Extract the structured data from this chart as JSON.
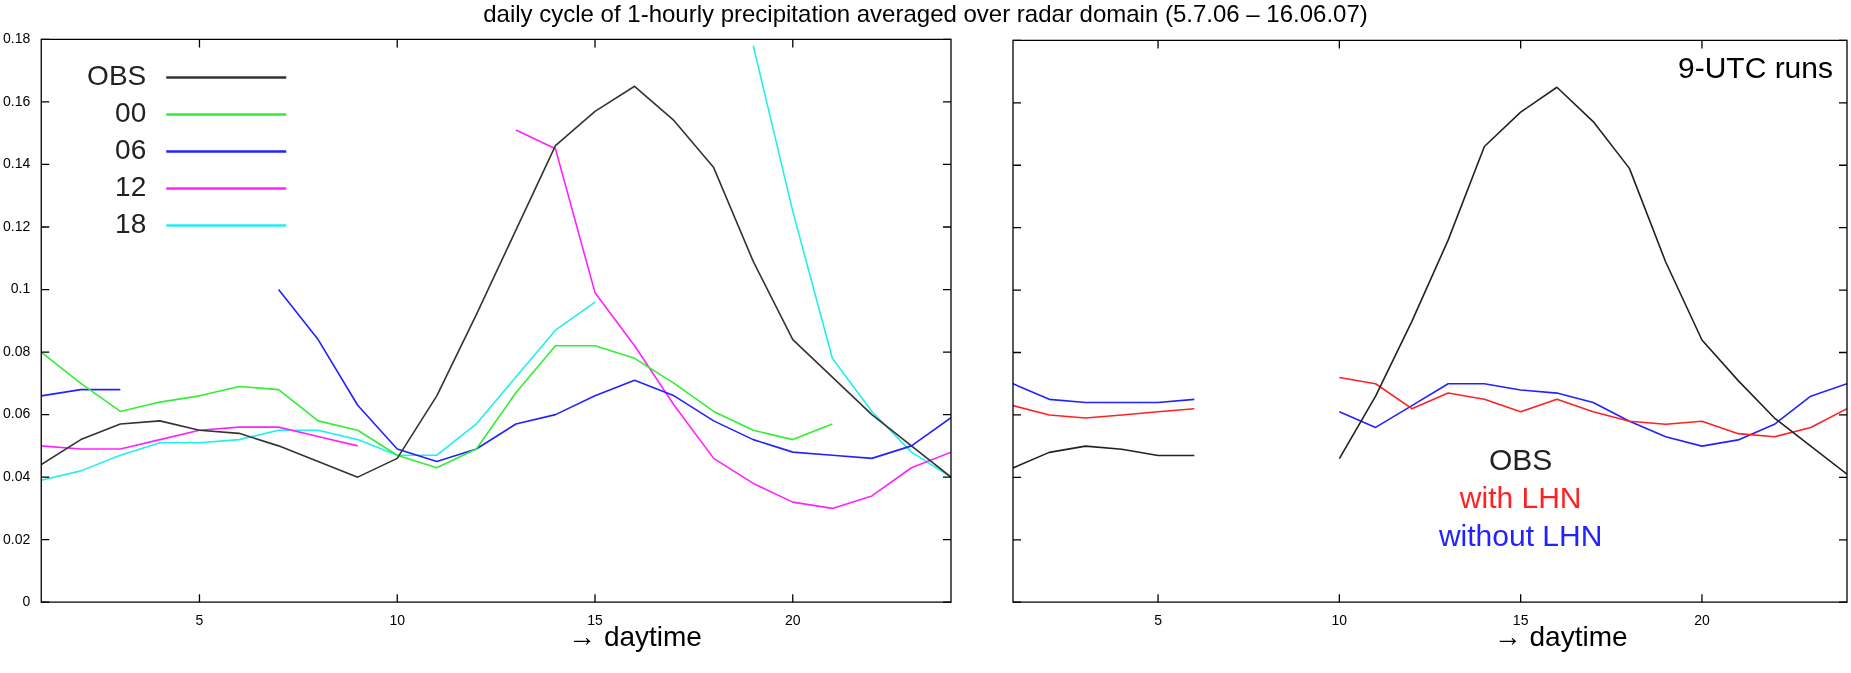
{
  "chart_data": [
    {
      "type": "line",
      "title": "daily cycle of 1-hourly precipitation averaged over radar domain (5.7.06 – 16.06.07)",
      "xlabel": "→ daytime",
      "x": [
        1,
        2,
        3,
        4,
        5,
        6,
        7,
        8,
        9,
        10,
        11,
        12,
        13,
        14,
        15,
        16,
        17,
        18,
        19,
        20,
        21,
        22,
        23,
        24
      ],
      "series": [
        {
          "name": "OBS",
          "color": "#333333",
          "values": [
            0.044,
            0.052,
            0.057,
            0.058,
            0.055,
            0.054,
            0.05,
            0.045,
            0.04,
            0.046,
            0.066,
            0.092,
            0.119,
            0.146,
            0.157,
            0.165,
            0.154,
            0.139,
            0.109,
            0.084,
            0.072,
            0.06,
            0.05,
            0.04
          ]
        },
        {
          "name": "00",
          "color": "#33ee33",
          "values": [
            0.08,
            0.07,
            0.061,
            0.064,
            0.066,
            0.069,
            0.068,
            0.058,
            0.055,
            0.047,
            0.043,
            0.049,
            0.067,
            0.082,
            0.082,
            0.078,
            0.07,
            0.061,
            0.055,
            0.052,
            0.057,
            null,
            null,
            null
          ]
        },
        {
          "name": "06",
          "color": "#2222ff",
          "values": [
            0.066,
            0.068,
            0.068,
            null,
            null,
            null,
            0.1,
            0.084,
            0.063,
            0.049,
            0.045,
            0.049,
            0.057,
            0.06,
            0.066,
            0.071,
            0.066,
            0.058,
            0.052,
            0.048,
            0.047,
            0.046,
            0.05,
            0.059
          ]
        },
        {
          "name": "12",
          "color": "#ff22ff",
          "values": [
            0.05,
            0.049,
            0.049,
            0.052,
            0.055,
            0.056,
            0.056,
            0.053,
            0.05,
            null,
            null,
            null,
            0.151,
            0.145,
            0.099,
            0.082,
            0.063,
            0.046,
            0.038,
            0.032,
            0.03,
            0.034,
            0.043,
            0.048
          ]
        },
        {
          "name": "18",
          "color": "#22eeee",
          "values": [
            0.039,
            0.042,
            0.047,
            0.051,
            0.051,
            0.052,
            0.055,
            0.055,
            0.052,
            0.047,
            0.047,
            0.057,
            0.072,
            0.087,
            0.096,
            null,
            null,
            null,
            0.178,
            0.125,
            0.078,
            0.061,
            0.048,
            0.04
          ]
        }
      ],
      "xlim": [
        1,
        24
      ],
      "xticks": [
        5,
        10,
        15,
        20
      ],
      "ylim": [
        0,
        0.18
      ],
      "yticks": [
        0,
        0.02,
        0.04,
        0.06,
        0.08,
        0.1,
        0.12,
        0.14,
        0.16,
        0.18
      ],
      "legend": "top left"
    },
    {
      "type": "line",
      "xlabel": "→ daytime",
      "annotations": [
        "9-UTC runs"
      ],
      "x": [
        1,
        2,
        3,
        4,
        5,
        6,
        7,
        8,
        9,
        10,
        11,
        12,
        13,
        14,
        15,
        16,
        17,
        18,
        19,
        20,
        21,
        22,
        23,
        24
      ],
      "series": [
        {
          "name": "OBS",
          "color": "#222222",
          "values": [
            0.043,
            0.048,
            0.05,
            0.049,
            0.047,
            0.047,
            null,
            null,
            null,
            0.046,
            0.066,
            0.09,
            0.116,
            0.146,
            0.157,
            0.165,
            0.154,
            0.139,
            0.109,
            0.084,
            0.071,
            0.059,
            0.05,
            0.041
          ]
        },
        {
          "name": "with LHN",
          "color": "#ff2222",
          "values": [
            0.063,
            0.06,
            0.059,
            0.06,
            0.061,
            0.062,
            null,
            null,
            null,
            0.072,
            0.07,
            0.062,
            0.067,
            0.065,
            0.061,
            0.065,
            0.061,
            0.058,
            0.057,
            0.058,
            0.054,
            0.053,
            0.056,
            0.062
          ]
        },
        {
          "name": "without LHN",
          "color": "#2222ff",
          "values": [
            0.07,
            0.065,
            0.064,
            0.064,
            0.064,
            0.065,
            null,
            null,
            null,
            0.061,
            0.056,
            0.063,
            0.07,
            0.07,
            0.068,
            0.067,
            0.064,
            0.058,
            0.053,
            0.05,
            0.052,
            0.057,
            0.066,
            0.07
          ]
        }
      ],
      "xlim": [
        1,
        24
      ],
      "xticks": [
        5,
        10,
        15,
        20
      ],
      "ylim": [
        0,
        0.18
      ],
      "yticks": [
        0,
        0.02,
        0.04,
        0.06,
        0.08,
        0.1,
        0.12,
        0.14,
        0.16,
        0.18
      ],
      "tick_labels": "x",
      "legend": "bottom"
    }
  ]
}
